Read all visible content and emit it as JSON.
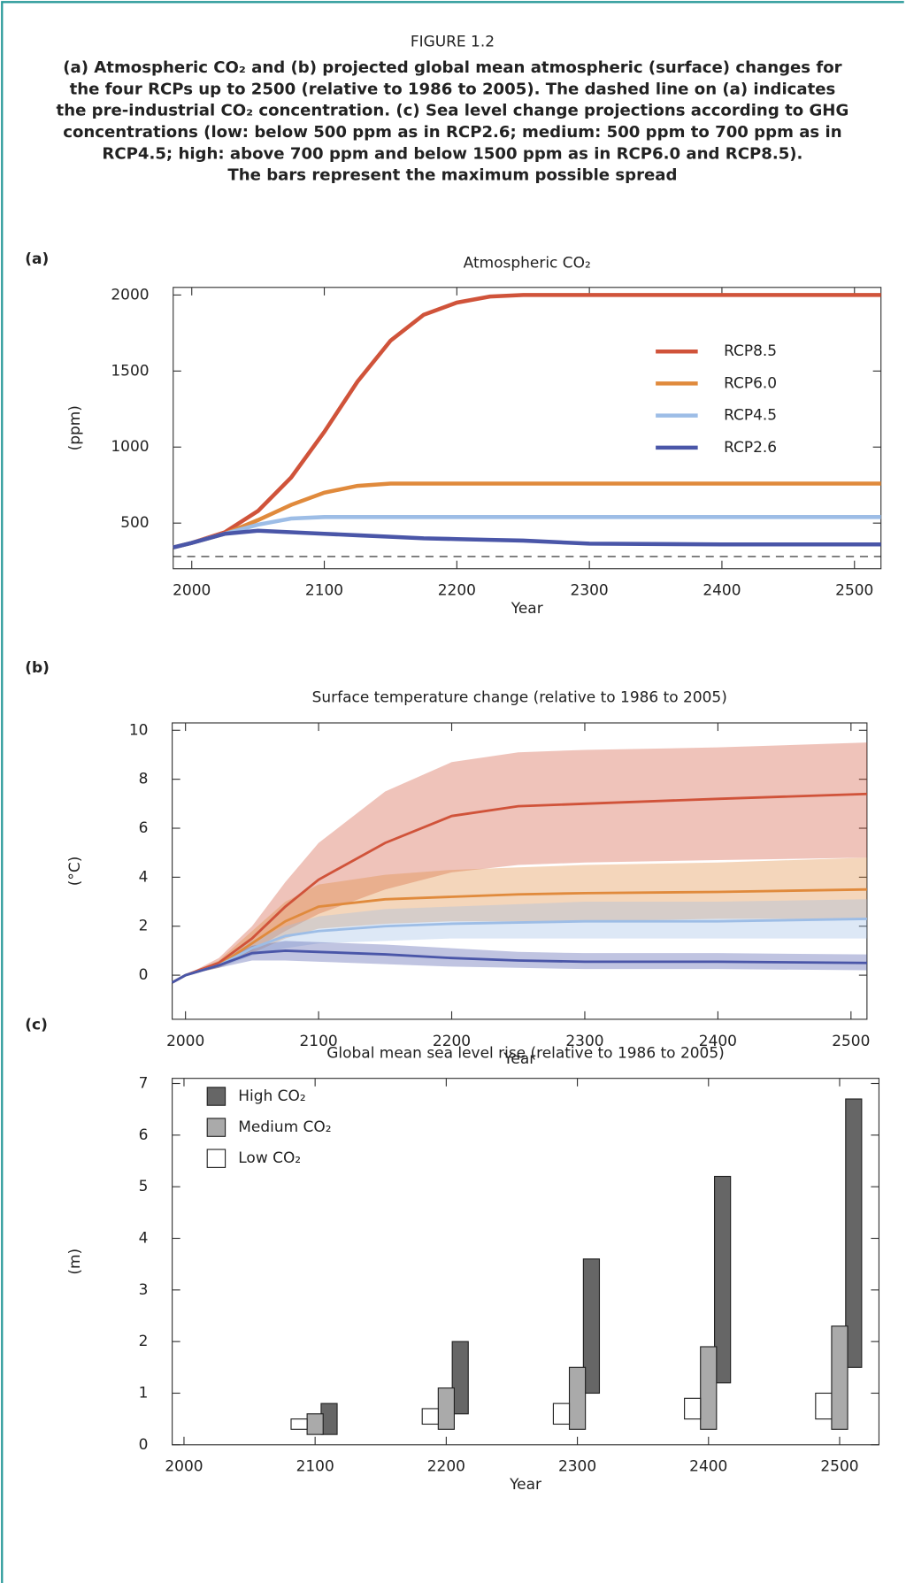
{
  "figure": {
    "label": "FIGURE 1.2",
    "caption_lines": [
      "(a) Atmospheric CO₂ and (b) projected global mean atmospheric (surface) changes for",
      "the four RCPs up to 2500 (relative to 1986 to 2005). The dashed line on (a) indicates",
      "the pre-industrial CO₂ concentration. (c) Sea level change projections according to GHG",
      "concentrations (low: below 500 ppm as in RCP2.6; medium: 500 ppm to 700 ppm as in",
      "RCP4.5; high: above 700 ppm and below 1500 ppm as in RCP6.0 and RCP8.5).",
      "The bars represent the maximum possible spread"
    ]
  },
  "chart_data": [
    {
      "type": "line",
      "panel_label": "(a)",
      "title": "Atmospheric CO₂",
      "x_label": "Year",
      "y_label": "(ppm)",
      "xlim": [
        1986,
        2520
      ],
      "xticks": [
        2000,
        2100,
        2200,
        2300,
        2400,
        2500
      ],
      "ylim": [
        200,
        2050
      ],
      "yticks": [
        500,
        1000,
        1500,
        2000
      ],
      "reference_line": 280,
      "x": [
        1986,
        2000,
        2025,
        2050,
        2075,
        2100,
        2125,
        2150,
        2175,
        2200,
        2225,
        2250,
        2300,
        2400,
        2520
      ],
      "series": [
        {
          "name": "RCP8.5",
          "color": "#d0533a",
          "values": [
            340,
            370,
            440,
            580,
            800,
            1100,
            1430,
            1700,
            1870,
            1950,
            1990,
            2000,
            2000,
            2000,
            2000
          ]
        },
        {
          "name": "RCP6.0",
          "color": "#e08a3c",
          "values": [
            340,
            370,
            430,
            520,
            620,
            700,
            745,
            760,
            760,
            760,
            760,
            760,
            760,
            760,
            760
          ]
        },
        {
          "name": "RCP4.5",
          "color": "#9dbde6",
          "values": [
            340,
            370,
            430,
            490,
            530,
            540,
            540,
            540,
            540,
            540,
            540,
            540,
            540,
            540,
            540
          ]
        },
        {
          "name": "RCP2.6",
          "color": "#4a56a8",
          "values": [
            340,
            370,
            430,
            450,
            440,
            430,
            420,
            410,
            400,
            395,
            390,
            385,
            365,
            360,
            360
          ]
        }
      ]
    },
    {
      "type": "line",
      "panel_label": "(b)",
      "title": "Surface temperature change (relative to 1986 to 2005)",
      "x_label": "Year",
      "y_label": "(°C)",
      "xlim": [
        1990,
        2512
      ],
      "xticks": [
        2000,
        2100,
        2200,
        2300,
        2400,
        2500
      ],
      "ylim": [
        -1.8,
        10.3
      ],
      "yticks": [
        0,
        2,
        4,
        6,
        8,
        10
      ],
      "x": [
        1990,
        2000,
        2025,
        2050,
        2075,
        2100,
        2150,
        2200,
        2250,
        2300,
        2400,
        2512
      ],
      "series": [
        {
          "color": "#d0533a",
          "values": [
            -0.3,
            0,
            0.5,
            1.5,
            2.8,
            3.9,
            5.4,
            6.5,
            6.9,
            7.0,
            7.2,
            7.4
          ],
          "lower": [
            -0.3,
            0,
            0.3,
            1.0,
            1.8,
            2.5,
            3.5,
            4.2,
            4.5,
            4.6,
            4.7,
            4.8
          ],
          "upper": [
            -0.3,
            0,
            0.7,
            2.0,
            3.8,
            5.4,
            7.5,
            8.7,
            9.1,
            9.2,
            9.3,
            9.5
          ]
        },
        {
          "color": "#e08a3c",
          "values": [
            -0.3,
            0,
            0.4,
            1.3,
            2.2,
            2.8,
            3.1,
            3.2,
            3.3,
            3.35,
            3.4,
            3.5
          ],
          "lower": [
            -0.3,
            0,
            0.3,
            0.9,
            1.5,
            1.9,
            2.1,
            2.2,
            2.2,
            2.2,
            2.3,
            2.3
          ],
          "upper": [
            -0.3,
            0,
            0.6,
            1.8,
            3.0,
            3.7,
            4.1,
            4.3,
            4.4,
            4.5,
            4.6,
            4.8
          ]
        },
        {
          "color": "#9dbde6",
          "values": [
            -0.3,
            0,
            0.4,
            1.1,
            1.6,
            1.8,
            2.0,
            2.1,
            2.15,
            2.2,
            2.2,
            2.3
          ],
          "lower": [
            -0.3,
            0,
            0.3,
            0.8,
            1.1,
            1.3,
            1.4,
            1.5,
            1.5,
            1.5,
            1.5,
            1.5
          ],
          "upper": [
            -0.3,
            0,
            0.5,
            1.4,
            2.0,
            2.4,
            2.7,
            2.8,
            2.9,
            3.0,
            3.0,
            3.1
          ]
        },
        {
          "color": "#4a56a8",
          "values": [
            -0.3,
            0,
            0.4,
            0.9,
            1.0,
            0.95,
            0.85,
            0.7,
            0.6,
            0.55,
            0.55,
            0.5
          ],
          "lower": [
            -0.3,
            0,
            0.3,
            0.6,
            0.6,
            0.55,
            0.45,
            0.35,
            0.3,
            0.25,
            0.25,
            0.2
          ],
          "upper": [
            -0.3,
            0,
            0.5,
            1.2,
            1.4,
            1.35,
            1.25,
            1.1,
            0.95,
            0.9,
            0.9,
            0.85
          ]
        }
      ]
    },
    {
      "type": "range_bar",
      "panel_label": "(c)",
      "title": "Global mean sea level rise (relative to 1986 to 2005)",
      "x_label": "Year",
      "y_label": "(m)",
      "xlim": [
        1991,
        2530
      ],
      "xticks": [
        2000,
        2100,
        2200,
        2300,
        2400,
        2500
      ],
      "ylim": [
        0,
        7.1
      ],
      "yticks": [
        0,
        1,
        2,
        3,
        4,
        5,
        6,
        7
      ],
      "x": [
        2100,
        2200,
        2300,
        2400,
        2500
      ],
      "series": [
        {
          "name": "High CO₂",
          "color": "#666666",
          "low": [
            0.2,
            0.6,
            1.0,
            1.2,
            1.5
          ],
          "high": [
            0.8,
            2.0,
            3.6,
            5.2,
            6.7
          ]
        },
        {
          "name": "Medium CO₂",
          "color": "#aaaaaa",
          "low": [
            0.2,
            0.3,
            0.3,
            0.3,
            0.3
          ],
          "high": [
            0.6,
            1.1,
            1.5,
            1.9,
            2.3
          ]
        },
        {
          "name": "Low CO₂",
          "color": "#ffffff",
          "low": [
            0.3,
            0.4,
            0.4,
            0.5,
            0.5
          ],
          "high": [
            0.5,
            0.7,
            0.8,
            0.9,
            1.0
          ]
        }
      ]
    }
  ]
}
